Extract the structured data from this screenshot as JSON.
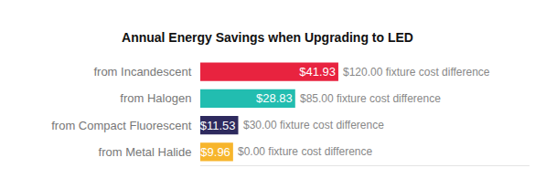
{
  "chart_data": {
    "type": "bar",
    "title": "Annual Energy Savings when Upgrading to LED",
    "orientation": "horizontal",
    "categories": [
      "from Incandescent",
      "from Halogen",
      "from Compact Fluorescent",
      "from Metal Halide"
    ],
    "values": [
      41.93,
      28.83,
      11.53,
      9.96
    ],
    "value_labels": [
      "$41.93",
      "$28.83",
      "$11.53",
      "$9.96"
    ],
    "colors": [
      "#e8233f",
      "#22bdb0",
      "#2e2a5e",
      "#f7b52c"
    ],
    "annotations": [
      "$120.00 fixture cost difference",
      "$85.00 fixture cost difference",
      "$30.00 fixture cost difference",
      "$0.00 fixture cost difference"
    ],
    "xlim": [
      0,
      100
    ],
    "xticks": [],
    "data_labels": true,
    "tick_labels": "y",
    "grid": false
  }
}
